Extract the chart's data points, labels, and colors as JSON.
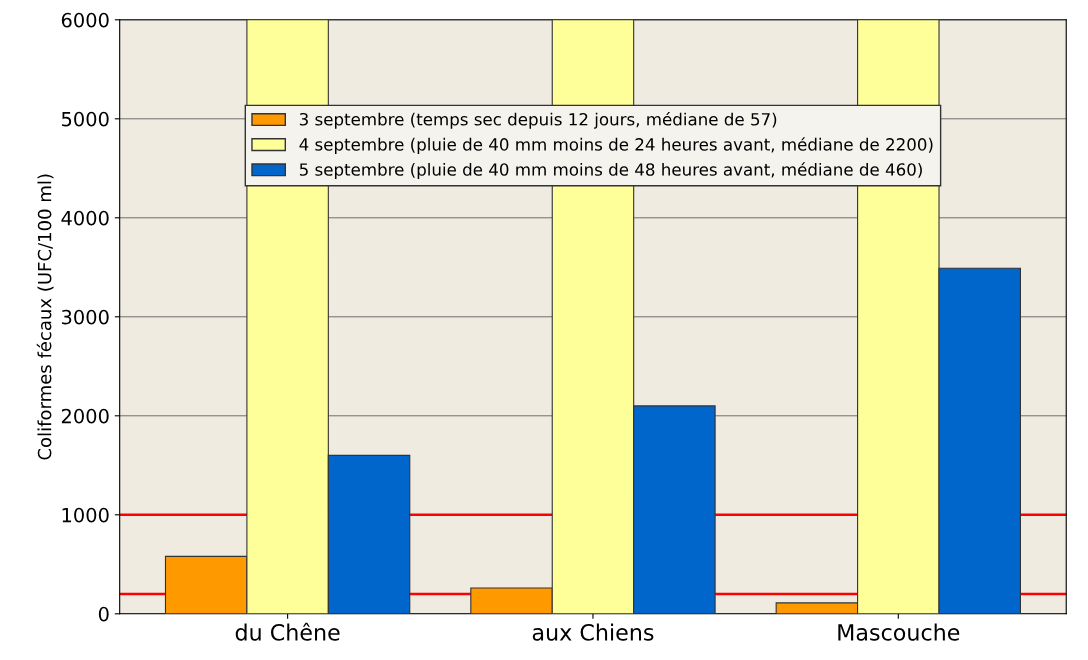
{
  "chart_data": {
    "type": "bar",
    "ylabel": "Coliformes fécaux (UFC/100 ml)",
    "categories": [
      "du Chêne",
      "aux Chiens",
      "Mascouche"
    ],
    "series": [
      {
        "name": "3 septembre (temps sec depuis 12 jours, médiane de 57)",
        "color": "#ff9900",
        "values": [
          580,
          260,
          110
        ]
      },
      {
        "name": "4 septembre (pluie de 40 mm moins de 24 heures avant, médiane de 2200)",
        "color": "#ffff99",
        "values": [
          6000,
          6000,
          6000
        ]
      },
      {
        "name": "5 septembre (pluie de 40 mm moins de 48 heures avant, médiane de 460)",
        "color": "#0066cc",
        "values": [
          1600,
          2100,
          3490
        ]
      }
    ],
    "ylim": [
      0,
      6000
    ],
    "yticks": [
      0,
      1000,
      2000,
      3000,
      4000,
      5000,
      6000
    ],
    "ref_lines": [
      {
        "axis": "y",
        "value": 1000,
        "color": "#ff0000"
      },
      {
        "axis": "y",
        "value": 200,
        "color": "#ff0000"
      }
    ],
    "grid": "y",
    "legend": "top"
  }
}
